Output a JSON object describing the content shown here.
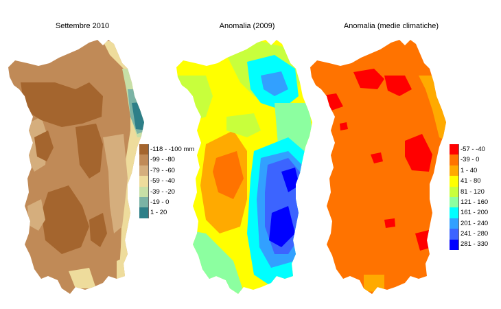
{
  "maps": [
    {
      "title": "Settembre 2010",
      "legend": [
        {
          "label": "-118 - -100 mm",
          "color": "#a4652e"
        },
        {
          "label": "-99 - -80",
          "color": "#c08a57"
        },
        {
          "label": "-79 - -60",
          "color": "#d5ae7d"
        },
        {
          "label": "-59 - -40",
          "color": "#eedc9c"
        },
        {
          "label": "-39 - -20",
          "color": "#c7dfa6"
        },
        {
          "label": "-19 - 0",
          "color": "#7bb3a5"
        },
        {
          "label": "1 - 20",
          "color": "#2e7f88"
        }
      ]
    },
    {
      "title": "Anomalia (2009)"
    },
    {
      "title": "Anomalia (medie climatiche)",
      "legend": [
        {
          "label": "-57 - -40",
          "color": "#ff0000"
        },
        {
          "label": "-39 - 0",
          "color": "#ff7300"
        },
        {
          "label": "1 - 40",
          "color": "#ffaa00"
        },
        {
          "label": "41 - 80",
          "color": "#ffff00"
        },
        {
          "label": "81 - 120",
          "color": "#c8ff3c"
        },
        {
          "label": "121 - 160",
          "color": "#8cffa0"
        },
        {
          "label": "161 - 200",
          "color": "#00ffff"
        },
        {
          "label": "201 - 240",
          "color": "#32a0ff"
        },
        {
          "label": "241 - 280",
          "color": "#3c64ff"
        },
        {
          "label": "281 - 330",
          "color": "#0000ff"
        }
      ]
    }
  ]
}
